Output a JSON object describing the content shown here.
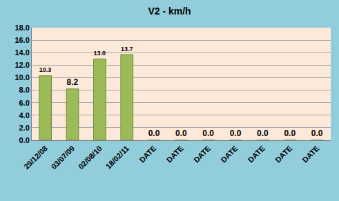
{
  "chart_data": {
    "type": "bar",
    "title": "V2 - km/h",
    "categories": [
      "29/12/08",
      "03/07/09",
      "02/08/10",
      "18/02/11",
      "DATE",
      "DATE",
      "DATE",
      "DATE",
      "DATE",
      "DATE",
      "DATE"
    ],
    "values": [
      10.3,
      8.2,
      13.0,
      13.7,
      0,
      0,
      0,
      0,
      0,
      0,
      0
    ],
    "value_labels": [
      "10.3",
      "8.2",
      "13.0",
      "13.7",
      "0.0",
      "0.0",
      "0.0",
      "0.0",
      "0.0",
      "0.0",
      "0.0"
    ],
    "color": "#9bbb59",
    "ylim": [
      0,
      18
    ],
    "yticks": [
      {
        "value": 0,
        "label": "0.0"
      },
      {
        "value": 2,
        "label": "2.0"
      },
      {
        "value": 4,
        "label": "4.0"
      },
      {
        "value": 6,
        "label": "6.0"
      },
      {
        "value": 8,
        "label": "8.0"
      },
      {
        "value": 10,
        "label": "10.0"
      },
      {
        "value": 12,
        "label": "12.0"
      },
      {
        "value": 14,
        "label": "14.0"
      },
      {
        "value": 16,
        "label": "16.0"
      },
      {
        "value": 18,
        "label": "18.0"
      }
    ],
    "grid": true,
    "data_labels": true
  }
}
